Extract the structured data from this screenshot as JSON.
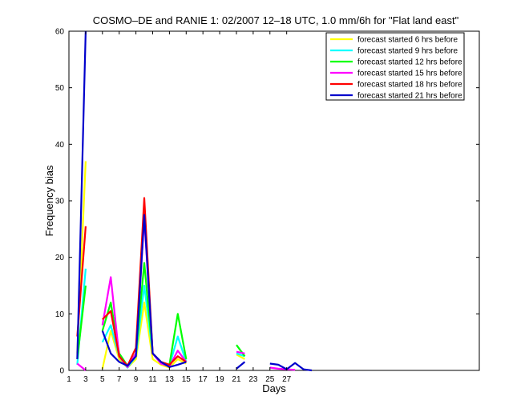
{
  "chart_data": {
    "type": "line",
    "title": "COSMO–DE and RANIE 1: 02/2007 12–18 UTC, 1.0 mm/6h for \"Flat land east\"",
    "xlabel": "Days",
    "ylabel": "Frequency bias",
    "xlim": [
      1,
      50
    ],
    "ylim": [
      0,
      60
    ],
    "xticks": [
      1,
      3,
      5,
      7,
      9,
      11,
      13,
      15,
      17,
      19,
      21,
      23,
      25,
      27
    ],
    "yticks": [
      0,
      10,
      20,
      30,
      40,
      50,
      60
    ],
    "grid": false,
    "legend_position": "top-right",
    "series": [
      {
        "name": "forecast started 6 hrs before",
        "color": "#ffff00",
        "x": [
          2,
          3,
          null,
          5,
          6,
          7,
          8,
          9,
          10,
          11,
          12,
          13,
          14,
          15,
          null,
          21,
          22
        ],
        "y": [
          3,
          37,
          null,
          0.3,
          7,
          2,
          0.5,
          2,
          12,
          2,
          1,
          0.5,
          2,
          1.2,
          null,
          2.8,
          2
        ]
      },
      {
        "name": "forecast started 9 hrs before",
        "color": "#00ffff",
        "x": [
          2,
          3,
          null,
          5,
          6,
          7,
          8,
          9,
          10,
          11,
          12,
          13,
          14,
          15,
          null,
          21,
          22
        ],
        "y": [
          1,
          18,
          null,
          5,
          8,
          2.5,
          0.5,
          2.5,
          15,
          3,
          1.2,
          0.8,
          6,
          1.5,
          null,
          3,
          2.5
        ]
      },
      {
        "name": "forecast started 12 hrs before",
        "color": "#00ff00",
        "x": [
          2,
          3,
          null,
          5,
          6,
          7,
          8,
          9,
          10,
          11,
          12,
          13,
          14,
          15,
          null,
          21,
          22
        ],
        "y": [
          2,
          15,
          null,
          7,
          12,
          3,
          0.8,
          3,
          19,
          3,
          1.5,
          1,
          10,
          2,
          null,
          4.5,
          2.5
        ]
      },
      {
        "name": "forecast started 15 hrs before",
        "color": "#ff00ff",
        "x": [
          2,
          3,
          null,
          5,
          6,
          7,
          8,
          9,
          10,
          11,
          12,
          13,
          14,
          15,
          null,
          21,
          22,
          null,
          25,
          26,
          27,
          28
        ],
        "y": [
          1.2,
          0,
          null,
          8,
          16.5,
          2.5,
          0.6,
          3,
          27,
          3,
          1.2,
          0.7,
          3.5,
          1.5,
          null,
          3.3,
          3,
          null,
          0.5,
          0.3,
          0.2,
          0.1
        ]
      },
      {
        "name": "forecast started 18 hrs before",
        "color": "#ff0000",
        "x": [
          2,
          3,
          null,
          5,
          6,
          7,
          8,
          9,
          10,
          11,
          12,
          13,
          14,
          15
        ],
        "y": [
          6,
          25.5,
          null,
          9,
          10.5,
          2.5,
          0.8,
          4,
          30.5,
          3,
          1.5,
          1,
          2.5,
          1.5
        ]
      },
      {
        "name": "forecast started 21 hrs before",
        "color": "#0000cc",
        "x": [
          2,
          3,
          null,
          5,
          6,
          7,
          8,
          9,
          10,
          11,
          12,
          13,
          14,
          15,
          null,
          21,
          22,
          null,
          25,
          26,
          27,
          28,
          29,
          30
        ],
        "y": [
          2,
          60,
          null,
          7,
          3,
          1.5,
          0.8,
          2.5,
          27.5,
          3,
          1.5,
          0.6,
          1,
          1.5,
          null,
          0.3,
          1.5,
          null,
          1.2,
          1,
          0.2,
          1.3,
          0.2,
          0
        ]
      }
    ]
  }
}
